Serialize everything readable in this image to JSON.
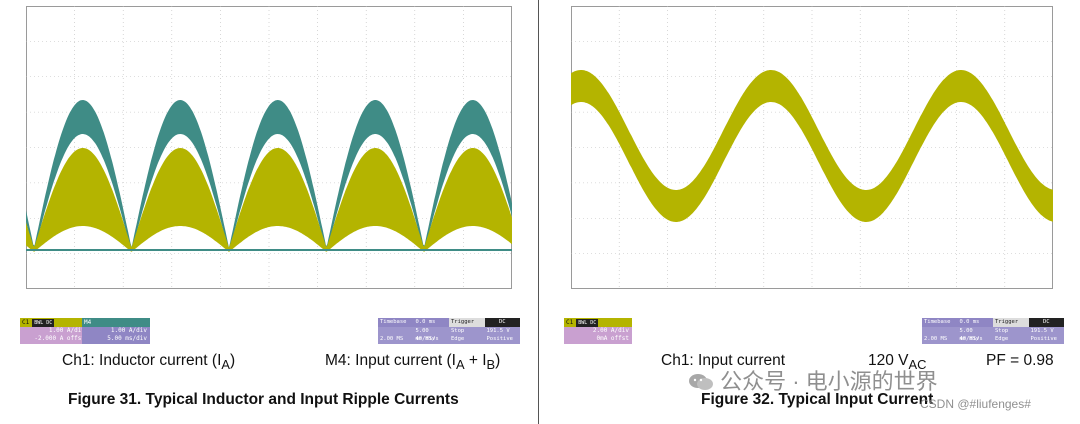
{
  "colors": {
    "ch1": "#b4b400",
    "m4": "#3f8c86",
    "grid": "#bdbdbd",
    "border": "#9a9a9a"
  },
  "left": {
    "ch1_box": {
      "name": "C1",
      "tag": "BWL DC",
      "v1": "1.00 A/div",
      "v2": "-2.000 A offst"
    },
    "m4_box": {
      "name": "M4",
      "v1": "1.00 A/div",
      "v2": "5.00 ms/div"
    },
    "timebase": {
      "h1": "Timebase",
      "h2": "0.0 ms",
      "h3": "Trigger",
      "h4": "DC",
      "r1a": "",
      "r1b": "5.00 ms/div",
      "r1c": "Stop",
      "r1d": "191.5 V",
      "r2a": "2.00 MS",
      "r2b": "40 MS/s",
      "r2c": "Edge",
      "r2d": "Positive"
    },
    "caption_ch1": "Ch1: Inductor current (I",
    "caption_ch1_sub": "A",
    "caption_ch1_end": ")",
    "caption_m4": "M4: Input current (I",
    "caption_m4_sub_a": "A",
    "caption_m4_mid": " + I",
    "caption_m4_sub_b": "B",
    "caption_m4_end": ")",
    "figure_title": "Figure 31. Typical Inductor and Input Ripple Currents"
  },
  "right": {
    "ch1_box": {
      "name": "C1",
      "tag": "BWL DC",
      "v1": "2.00 A/div",
      "v2": "0mA offst"
    },
    "timebase": {
      "h1": "Timebase",
      "h2": "0.0 ms",
      "h3": "Trigger",
      "h4": "DC",
      "r1a": "",
      "r1b": "5.00 ms/div",
      "r1c": "Stop",
      "r1d": "191.5 V",
      "r2a": "2.00 MS",
      "r2b": "40 MS/s",
      "r2c": "Edge",
      "r2d": "Positive"
    },
    "caption_ch1": "Ch1: Input current",
    "caption_vac": "120 V",
    "caption_vac_sub": "AC",
    "caption_pf": "PF = 0.98",
    "figure_title": "Figure 32. Typical Input Current"
  },
  "watermark": {
    "main": "公众号 · 电小源的世界",
    "sub": "CSDN @#liufenges#"
  }
}
